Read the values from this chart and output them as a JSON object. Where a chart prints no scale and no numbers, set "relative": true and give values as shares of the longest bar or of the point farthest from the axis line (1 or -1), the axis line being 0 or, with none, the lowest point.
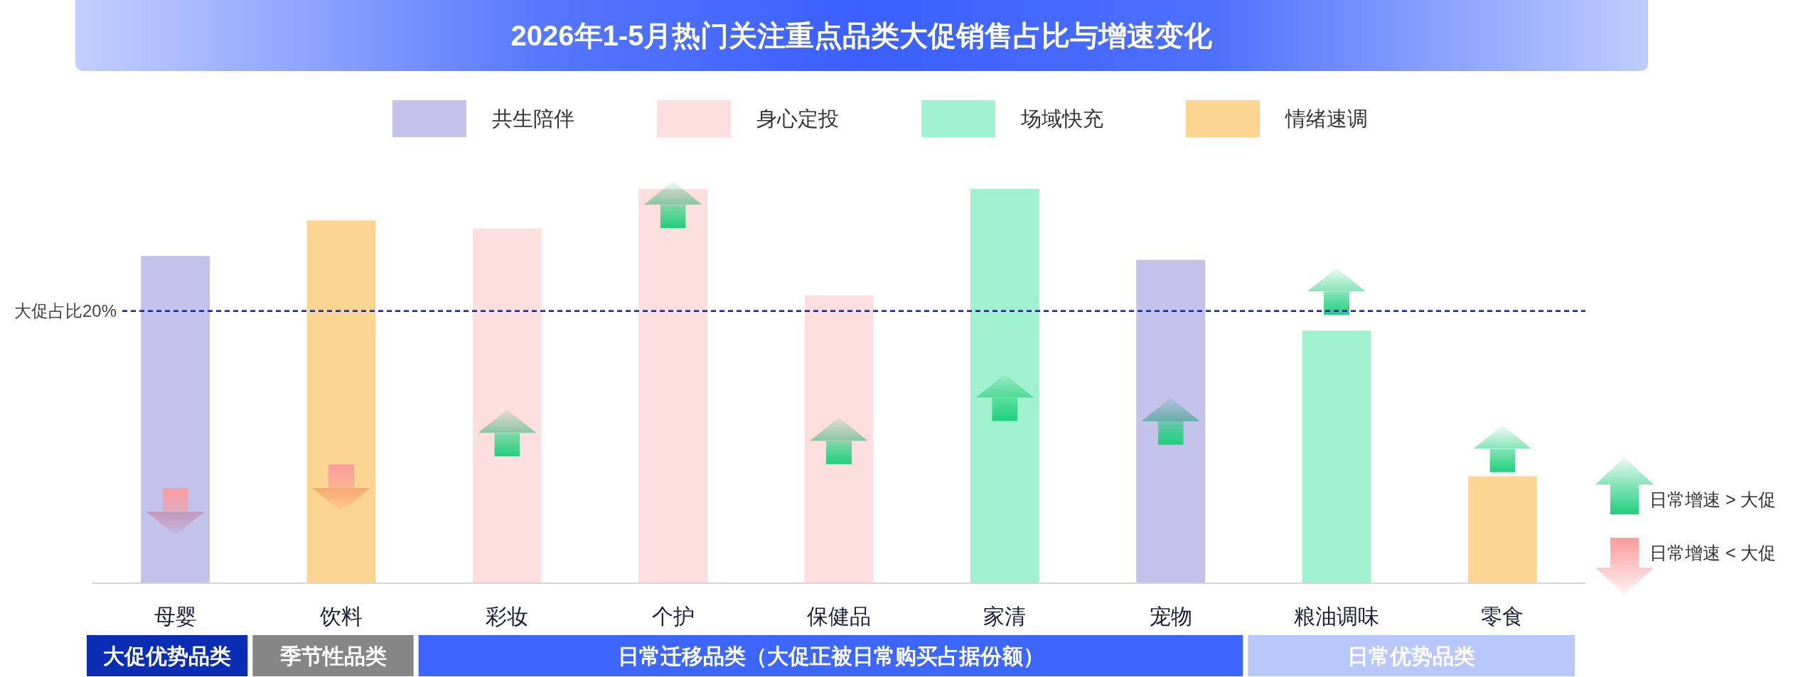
{
  "chart_data": {
    "type": "bar",
    "title": "2026年1-5月热门关注重点品类大促销售占比与增速变化",
    "categories": [
      "母婴",
      "饮料",
      "彩妆",
      "个护",
      "保健品",
      "家清",
      "宠物",
      "粮油调味",
      "零食"
    ],
    "relative": true,
    "legend": "top",
    "series": [
      {
        "name": "共生陪伴",
        "color": "#c3c2ea",
        "values": [
          0.83,
          null,
          null,
          null,
          null,
          null,
          0.82,
          null,
          null
        ]
      },
      {
        "name": "身心定投",
        "color": "#fddfdf",
        "values": [
          null,
          null,
          0.9,
          1,
          0.73,
          null,
          null,
          null,
          null
        ]
      },
      {
        "name": "场域快充",
        "color": "#a0f1cf",
        "values": [
          null,
          null,
          null,
          null,
          null,
          1,
          null,
          0.64,
          null
        ]
      },
      {
        "name": "情绪速调",
        "color": "#fcd592",
        "values": [
          null,
          0.92,
          null,
          null,
          null,
          null,
          null,
          null,
          0.27
        ]
      },
      {
        "name": "日常增速 > 大促",
        "type": "scatter",
        "marker": "square",
        "color": "#1ecf7c",
        "x": [
          "彩妆",
          "个护",
          "保健品",
          "家清",
          "宠物",
          "粮油调味",
          "零食"
        ],
        "values": [
          0.35,
          0.93,
          0.33,
          0.44,
          0.38,
          0.71,
          0.31
        ]
      },
      {
        "name": "日常增速 < 大促",
        "type": "scatter",
        "marker": "square",
        "color": "#fb9a9a",
        "x": [
          "母婴",
          "饮料"
        ],
        "values": [
          0.21,
          0.27
        ]
      }
    ],
    "ref_lines": [
      {
        "axis": "y",
        "value": 0.69,
        "label": "大促占比20%",
        "color": "#1b2196",
        "line_style": "dashed"
      }
    ],
    "annotations": [
      "大促优势品类",
      "季节性品类",
      "日常迁移品类（大促正被日常购买占据份额）",
      "日常优势品类"
    ]
  }
}
